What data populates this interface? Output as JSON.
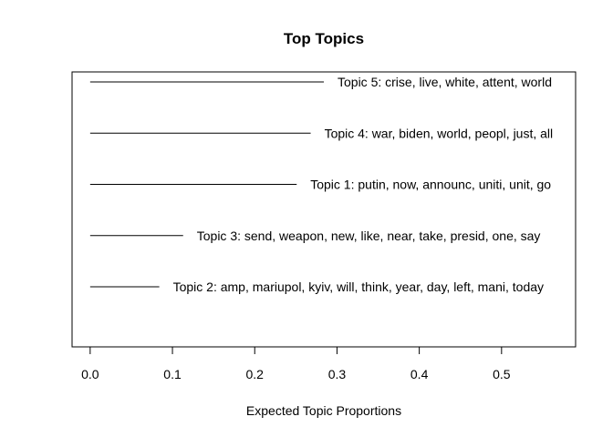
{
  "chart_data": {
    "type": "bar",
    "title": "Top Topics",
    "xlabel": "Expected Topic Proportions",
    "ylabel": "",
    "xlim": [
      -0.022,
      0.59
    ],
    "xticks": [
      0.0,
      0.1,
      0.2,
      0.3,
      0.4,
      0.5
    ],
    "xtick_labels": [
      "0.0",
      "0.1",
      "0.2",
      "0.3",
      "0.4",
      "0.5"
    ],
    "grid": false,
    "legend": "none",
    "colors": {
      "line": "#000000",
      "text": "#000000",
      "background": "#ffffff"
    },
    "series": [
      {
        "label": "Topic 5: crise, live, white, attent, world",
        "value": 0.284
      },
      {
        "label": "Topic 4: war, biden, world, peopl, just, all",
        "value": 0.268
      },
      {
        "label": "Topic 1: putin, now, announc, uniti, unit, go",
        "value": 0.251
      },
      {
        "label": "Topic 3: send, weapon, new, like, near, take, presid, one, say",
        "value": 0.113
      },
      {
        "label": "Topic 2: amp, mariupol, kyiv, will, think, year, day, left, mani, today",
        "value": 0.084
      }
    ]
  }
}
